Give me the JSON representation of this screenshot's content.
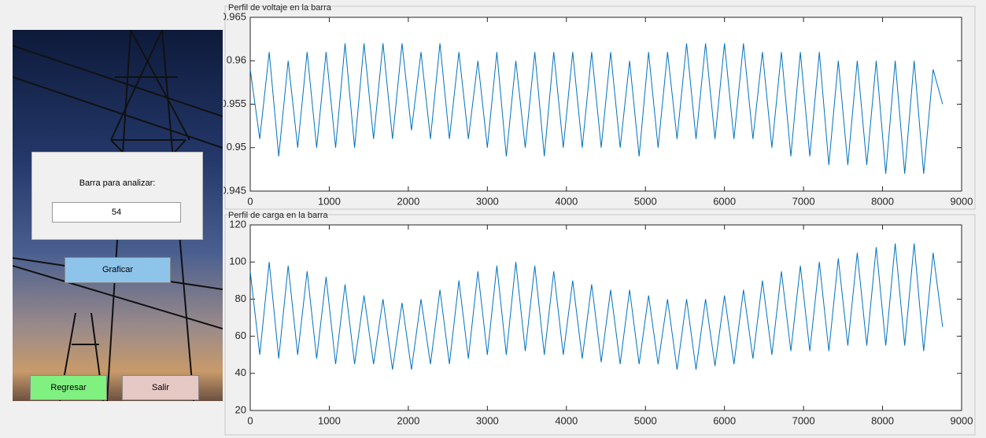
{
  "panel": {
    "prompt": "Barra para analizar:",
    "input": "54"
  },
  "buttons": {
    "plot": "Graficar",
    "back": "Regresar",
    "exit": "Salir"
  },
  "chart_data": [
    {
      "type": "line",
      "title": "Perfil de voltaje en la barra",
      "color": "#0072bd",
      "x": [
        0,
        120,
        240,
        360,
        480,
        600,
        720,
        840,
        960,
        1080,
        1200,
        1320,
        1440,
        1560,
        1680,
        1800,
        1920,
        2040,
        2160,
        2280,
        2400,
        2520,
        2640,
        2760,
        2880,
        3000,
        3120,
        3240,
        3360,
        3480,
        3600,
        3720,
        3840,
        3960,
        4080,
        4200,
        4320,
        4440,
        4560,
        4680,
        4800,
        4920,
        5040,
        5160,
        5280,
        5400,
        5520,
        5640,
        5760,
        5880,
        6000,
        6120,
        6240,
        6360,
        6480,
        6600,
        6720,
        6840,
        6960,
        7080,
        7200,
        7320,
        7440,
        7560,
        7680,
        7800,
        7920,
        8040,
        8160,
        8280,
        8400,
        8520,
        8640,
        8760
      ],
      "values": [
        0.959,
        0.951,
        0.961,
        0.949,
        0.96,
        0.95,
        0.961,
        0.95,
        0.961,
        0.95,
        0.962,
        0.95,
        0.962,
        0.951,
        0.962,
        0.951,
        0.962,
        0.952,
        0.961,
        0.951,
        0.962,
        0.951,
        0.961,
        0.951,
        0.96,
        0.95,
        0.961,
        0.949,
        0.96,
        0.95,
        0.961,
        0.949,
        0.961,
        0.95,
        0.961,
        0.95,
        0.961,
        0.95,
        0.961,
        0.95,
        0.96,
        0.949,
        0.961,
        0.95,
        0.961,
        0.951,
        0.962,
        0.951,
        0.962,
        0.951,
        0.962,
        0.951,
        0.962,
        0.951,
        0.961,
        0.95,
        0.961,
        0.949,
        0.961,
        0.949,
        0.961,
        0.948,
        0.96,
        0.948,
        0.96,
        0.948,
        0.96,
        0.947,
        0.96,
        0.947,
        0.96,
        0.947,
        0.959,
        0.955
      ],
      "xlim": [
        0,
        9000
      ],
      "xticks": [
        0,
        1000,
        2000,
        3000,
        4000,
        5000,
        6000,
        7000,
        8000,
        9000
      ],
      "ylim": [
        0.945,
        0.965
      ],
      "yticks": [
        0.945,
        0.95,
        0.955,
        0.96,
        0.965
      ]
    },
    {
      "type": "line",
      "title": "Perfil de carga en la barra",
      "color": "#0072bd",
      "x": [
        0,
        120,
        240,
        360,
        480,
        600,
        720,
        840,
        960,
        1080,
        1200,
        1320,
        1440,
        1560,
        1680,
        1800,
        1920,
        2040,
        2160,
        2280,
        2400,
        2520,
        2640,
        2760,
        2880,
        3000,
        3120,
        3240,
        3360,
        3480,
        3600,
        3720,
        3840,
        3960,
        4080,
        4200,
        4320,
        4440,
        4560,
        4680,
        4800,
        4920,
        5040,
        5160,
        5280,
        5400,
        5520,
        5640,
        5760,
        5880,
        6000,
        6120,
        6240,
        6360,
        6480,
        6600,
        6720,
        6840,
        6960,
        7080,
        7200,
        7320,
        7440,
        7560,
        7680,
        7800,
        7920,
        8040,
        8160,
        8280,
        8400,
        8520,
        8640,
        8760
      ],
      "values": [
        95,
        50,
        100,
        48,
        98,
        50,
        95,
        48,
        92,
        45,
        88,
        45,
        82,
        45,
        80,
        42,
        78,
        42,
        80,
        45,
        85,
        45,
        90,
        48,
        95,
        50,
        98,
        50,
        100,
        52,
        98,
        50,
        95,
        50,
        90,
        48,
        88,
        46,
        85,
        45,
        85,
        45,
        82,
        45,
        80,
        42,
        80,
        42,
        80,
        44,
        82,
        45,
        85,
        48,
        90,
        50,
        95,
        52,
        98,
        52,
        100,
        52,
        102,
        55,
        105,
        55,
        108,
        55,
        110,
        55,
        110,
        52,
        105,
        65
      ],
      "xlim": [
        0,
        9000
      ],
      "xticks": [
        0,
        1000,
        2000,
        3000,
        4000,
        5000,
        6000,
        7000,
        8000,
        9000
      ],
      "ylim": [
        20,
        120
      ],
      "yticks": [
        20,
        40,
        60,
        80,
        100,
        120
      ]
    }
  ]
}
